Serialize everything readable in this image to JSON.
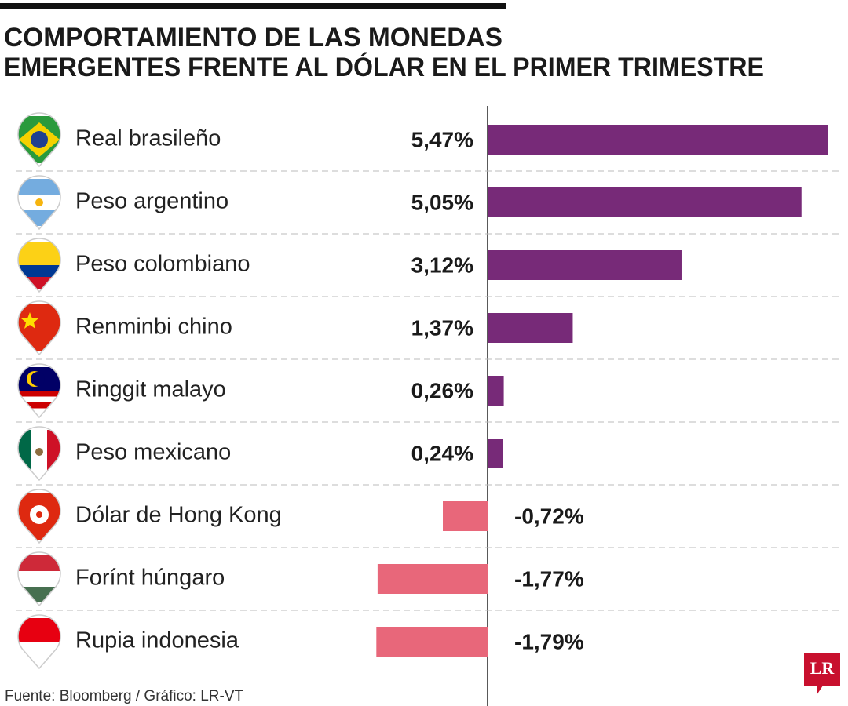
{
  "chart_data": {
    "type": "hbar",
    "title": [
      "COMPORTAMIENTO DE LAS MONEDAS",
      "EMERGENTES FRENTE AL DÓLAR EN EL PRIMER TRIMESTRE"
    ],
    "categories": [
      "Real brasileño",
      "Peso argentino",
      "Peso colombiano",
      "Renminbi chino",
      "Ringgit malayo",
      "Peso mexicano",
      "Dólar de Hong Kong",
      "Forínt húngaro",
      "Rupia indonesia"
    ],
    "values": [
      5.47,
      5.05,
      3.12,
      1.37,
      0.26,
      0.24,
      -0.72,
      -1.77,
      -1.79
    ],
    "value_labels": [
      "5,47%",
      "5,05%",
      "3,12%",
      "1,37%",
      "0,26%",
      "0,24%",
      "-0,72%",
      "-1,77%",
      "-1,79%"
    ],
    "color": "#772a78",
    "negative_color": "#e8677a",
    "source": "Fuente: Bloomberg  / Gráfico: LR-VT",
    "logo": "LR"
  }
}
